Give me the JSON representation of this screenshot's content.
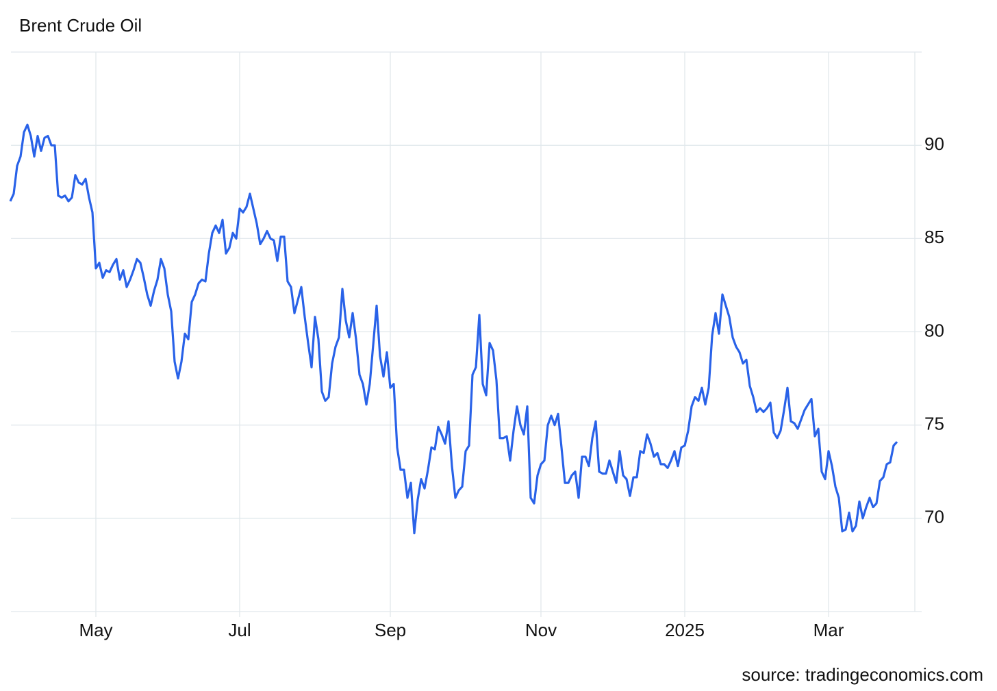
{
  "chart_data": {
    "type": "line",
    "title": "Brent Crude Oil",
    "source": "source: tradingeconomics.com",
    "categories": [
      null,
      null,
      null,
      null,
      null,
      null,
      null,
      null,
      null,
      null,
      null,
      null,
      null,
      null,
      null,
      null,
      null,
      null,
      null,
      null,
      null,
      null,
      null,
      null,
      null,
      "May",
      null,
      null,
      null,
      null,
      null,
      null,
      null,
      null,
      null,
      null,
      null,
      null,
      null,
      null,
      null,
      null,
      null,
      null,
      null,
      null,
      null,
      null,
      null,
      null,
      null,
      null,
      null,
      null,
      null,
      null,
      null,
      null,
      null,
      null,
      null,
      null,
      null,
      null,
      null,
      null,
      null,
      "Jul",
      null,
      null,
      null,
      null,
      null,
      null,
      null,
      null,
      null,
      null,
      null,
      null,
      null,
      null,
      null,
      null,
      null,
      null,
      null,
      null,
      null,
      null,
      null,
      null,
      null,
      null,
      null,
      null,
      null,
      null,
      null,
      null,
      null,
      null,
      null,
      null,
      null,
      null,
      null,
      null,
      null,
      null,
      null,
      "Sep",
      null,
      null,
      null,
      null,
      null,
      null,
      null,
      null,
      null,
      null,
      null,
      null,
      null,
      null,
      null,
      null,
      null,
      null,
      null,
      null,
      null,
      null,
      null,
      null,
      null,
      null,
      null,
      null,
      null,
      null,
      null,
      null,
      null,
      null,
      null,
      null,
      null,
      null,
      null,
      null,
      null,
      null,
      null,
      "Nov",
      null,
      null,
      null,
      null,
      null,
      null,
      null,
      null,
      null,
      null,
      null,
      null,
      null,
      null,
      null,
      null,
      null,
      null,
      null,
      null,
      null,
      null,
      null,
      null,
      null,
      null,
      null,
      null,
      null,
      null,
      null,
      null,
      null,
      null,
      null,
      null,
      null,
      null,
      null,
      null,
      null,
      "2025",
      null,
      null,
      null,
      null,
      null,
      null,
      null,
      null,
      null,
      null,
      null,
      null,
      null,
      null,
      null,
      null,
      null,
      null,
      null,
      null,
      null,
      null,
      null,
      null,
      null,
      null,
      null,
      null,
      null,
      null,
      null,
      null,
      null,
      null,
      null,
      null,
      null,
      null,
      null,
      null,
      null,
      "Mar",
      null,
      null,
      null,
      null,
      null,
      null,
      null,
      null,
      null,
      null,
      null,
      null,
      null,
      null,
      null,
      null,
      null,
      null,
      null,
      null
    ],
    "series": [
      {
        "name": "Brent Crude Oil",
        "color": "#2962e8",
        "values": [
          87.0,
          87.4,
          88.9,
          89.4,
          90.7,
          91.1,
          90.5,
          89.4,
          90.5,
          89.7,
          90.4,
          90.5,
          90.0,
          90.0,
          87.3,
          87.2,
          87.3,
          87.0,
          87.2,
          88.4,
          88.0,
          87.9,
          88.2,
          87.2,
          86.4,
          83.4,
          83.7,
          82.9,
          83.3,
          83.2,
          83.6,
          83.9,
          82.8,
          83.3,
          82.4,
          82.8,
          83.3,
          83.9,
          83.7,
          82.9,
          82.0,
          81.4,
          82.2,
          82.8,
          83.9,
          83.4,
          82.0,
          81.1,
          78.4,
          77.5,
          78.4,
          79.9,
          79.6,
          81.6,
          82.0,
          82.6,
          82.8,
          82.7,
          84.2,
          85.3,
          85.7,
          85.3,
          86.0,
          84.2,
          84.5,
          85.3,
          85.0,
          86.6,
          86.4,
          86.7,
          87.4,
          86.6,
          85.8,
          84.7,
          85.0,
          85.4,
          85.0,
          84.9,
          83.8,
          85.1,
          85.1,
          82.7,
          82.4,
          81.0,
          81.7,
          82.4,
          80.8,
          79.4,
          78.1,
          80.8,
          79.6,
          76.8,
          76.3,
          76.5,
          78.3,
          79.2,
          79.7,
          82.3,
          80.6,
          79.7,
          81.0,
          79.6,
          77.7,
          77.2,
          76.1,
          77.2,
          79.3,
          81.4,
          78.7,
          77.6,
          78.9,
          77.0,
          77.2,
          73.8,
          72.6,
          72.6,
          71.1,
          71.9,
          69.2,
          71.0,
          72.1,
          71.6,
          72.6,
          73.8,
          73.7,
          74.9,
          74.5,
          74.0,
          75.2,
          72.8,
          71.1,
          71.5,
          71.7,
          73.6,
          73.9,
          77.7,
          78.1,
          80.9,
          77.2,
          76.6,
          79.4,
          79.0,
          77.4,
          74.3,
          74.3,
          74.4,
          73.1,
          74.7,
          76.0,
          75.0,
          74.5,
          76.0,
          71.1,
          70.8,
          72.3,
          72.9,
          73.1,
          75.0,
          75.5,
          75.0,
          75.6,
          73.8,
          71.9,
          71.9,
          72.3,
          72.5,
          71.1,
          73.3,
          73.3,
          72.8,
          74.3,
          75.2,
          72.5,
          72.4,
          72.4,
          73.1,
          72.5,
          71.9,
          73.6,
          72.3,
          72.1,
          71.2,
          72.2,
          72.2,
          73.6,
          73.5,
          74.5,
          74.0,
          73.3,
          73.5,
          72.9,
          72.9,
          72.7,
          73.1,
          73.6,
          72.8,
          73.8,
          73.9,
          74.7,
          76.0,
          76.5,
          76.3,
          77.0,
          76.1,
          77.0,
          79.8,
          81.0,
          79.9,
          82.0,
          81.4,
          80.8,
          79.7,
          79.2,
          78.9,
          78.3,
          78.5,
          77.1,
          76.5,
          75.7,
          75.9,
          75.7,
          75.9,
          76.2,
          74.6,
          74.3,
          74.7,
          75.8,
          77.0,
          75.2,
          75.1,
          74.8,
          75.3,
          75.8,
          76.1,
          76.4,
          74.4,
          74.8,
          72.5,
          72.1,
          73.6,
          72.8,
          71.7,
          71.1,
          69.3,
          69.4,
          70.3,
          69.3,
          69.6,
          70.9,
          70.0,
          70.6,
          71.1,
          70.6,
          70.8,
          72.0,
          72.2,
          72.9,
          73.0,
          73.9,
          74.1
        ]
      }
    ],
    "ylim": [
      65,
      95
    ],
    "yticks": [
      70,
      75,
      80,
      85,
      90
    ],
    "grid": true
  }
}
